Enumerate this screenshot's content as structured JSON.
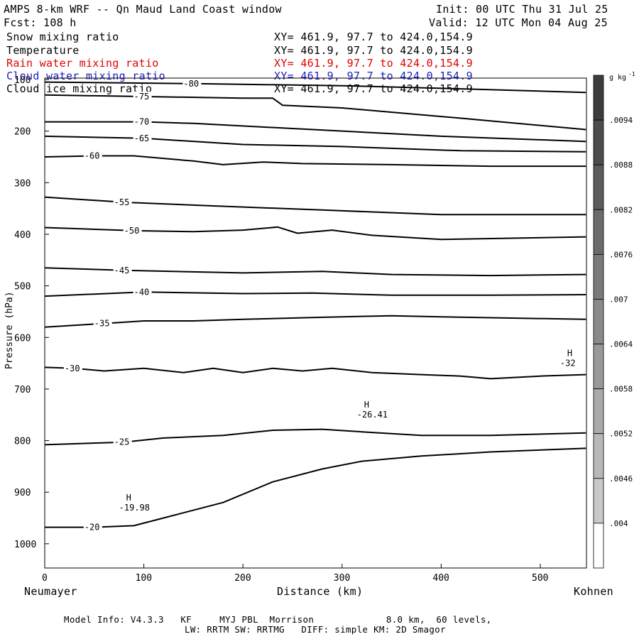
{
  "header": {
    "title": "AMPS 8-km WRF -- Qn Maud Land Coast window",
    "fcst": "Fcst: 108 h",
    "init": "Init: 00 UTC Thu 31 Jul 25",
    "valid": "Valid: 12 UTC Mon 04 Aug 25"
  },
  "legend": [
    {
      "name": "Snow mixing ratio",
      "xy": "XY= 461.9, 97.7 to 424.0,154.9",
      "color": "#000000"
    },
    {
      "name": "Temperature",
      "xy": "XY= 461.9, 97.7 to 424.0,154.9",
      "color": "#000000"
    },
    {
      "name": "Rain water mixing ratio",
      "xy": "XY= 461.9, 97.7 to 424.0,154.9",
      "color": "#e00000"
    },
    {
      "name": "Cloud water mixing ratio",
      "xy": "XY= 461.9, 97.7 to 424.0,154.9",
      "color": "#2020c0"
    },
    {
      "name": "Cloud ice mixing ratio",
      "xy": "XY= 461.9, 97.7 to 424.0,154.9",
      "color": "#000000"
    }
  ],
  "footer": {
    "line1": "Model Info: V4.3.3   KF     MYJ PBL  Morrison             8.0 km,  60 levels,",
    "line2": "LW: RRTM SW: RRTMG   DIFF: simple KM: 2D Smagor"
  },
  "chart_data": {
    "type": "line",
    "xlabel": "Distance (km)",
    "ylabel": "Pressure (hPa)",
    "x_left_label": "Neumayer",
    "x_right_label": "Kohnen",
    "xlim": [
      0,
      546
    ],
    "ylim": [
      1050,
      100
    ],
    "xticks": [
      0,
      100,
      200,
      300,
      400,
      500
    ],
    "yticks": [
      100,
      200,
      300,
      400,
      500,
      600,
      700,
      800,
      900,
      1000
    ],
    "colorbar": {
      "unit": "g kg",
      "unit_exp": "-1",
      "labels": [
        ".0094",
        ".0088",
        ".0082",
        ".0076",
        ".007",
        ".0064",
        ".0058",
        ".0052",
        ".0046",
        ".004"
      ]
    },
    "isotherms": [
      {
        "label": "-80",
        "points": [
          [
            0,
            105
          ],
          [
            150,
            108
          ],
          [
            300,
            112
          ],
          [
            420,
            118
          ],
          [
            546,
            125
          ]
        ]
      },
      {
        "label": "-75",
        "points": [
          [
            0,
            130
          ],
          [
            100,
            133
          ],
          [
            200,
            136
          ],
          [
            230,
            136
          ],
          [
            240,
            150
          ],
          [
            300,
            155
          ],
          [
            420,
            175
          ],
          [
            546,
            197
          ]
        ]
      },
      {
        "label": "-70",
        "points": [
          [
            0,
            182
          ],
          [
            100,
            182
          ],
          [
            150,
            185
          ],
          [
            250,
            195
          ],
          [
            400,
            210
          ],
          [
            546,
            220
          ]
        ]
      },
      {
        "label": "-65",
        "points": [
          [
            0,
            210
          ],
          [
            100,
            214
          ],
          [
            200,
            226
          ],
          [
            300,
            230
          ],
          [
            420,
            238
          ],
          [
            546,
            240
          ]
        ]
      },
      {
        "label": "-60",
        "points": [
          [
            0,
            250
          ],
          [
            50,
            248
          ],
          [
            90,
            248
          ],
          [
            150,
            258
          ],
          [
            180,
            265
          ],
          [
            220,
            260
          ],
          [
            260,
            263
          ],
          [
            350,
            265
          ],
          [
            450,
            268
          ],
          [
            546,
            268
          ]
        ]
      },
      {
        "label": "-55",
        "points": [
          [
            0,
            328
          ],
          [
            80,
            338
          ],
          [
            170,
            345
          ],
          [
            280,
            353
          ],
          [
            400,
            362
          ],
          [
            546,
            362
          ]
        ]
      },
      {
        "label": "-50",
        "points": [
          [
            0,
            387
          ],
          [
            90,
            393
          ],
          [
            150,
            395
          ],
          [
            200,
            392
          ],
          [
            235,
            386
          ],
          [
            255,
            398
          ],
          [
            290,
            392
          ],
          [
            330,
            402
          ],
          [
            400,
            410
          ],
          [
            546,
            405
          ]
        ]
      },
      {
        "label": "-45",
        "points": [
          [
            0,
            465
          ],
          [
            80,
            470
          ],
          [
            200,
            475
          ],
          [
            280,
            472
          ],
          [
            350,
            478
          ],
          [
            450,
            480
          ],
          [
            546,
            478
          ]
        ]
      },
      {
        "label": "-40",
        "points": [
          [
            0,
            520
          ],
          [
            100,
            512
          ],
          [
            200,
            515
          ],
          [
            270,
            514
          ],
          [
            350,
            518
          ],
          [
            450,
            518
          ],
          [
            546,
            517
          ]
        ]
      },
      {
        "label": "-35",
        "points": [
          [
            0,
            580
          ],
          [
            60,
            573
          ],
          [
            100,
            568
          ],
          [
            150,
            568
          ],
          [
            200,
            565
          ],
          [
            280,
            561
          ],
          [
            350,
            558
          ],
          [
            400,
            560
          ],
          [
            546,
            565
          ]
        ]
      },
      {
        "label": "-30",
        "points": [
          [
            0,
            658
          ],
          [
            30,
            660
          ],
          [
            60,
            665
          ],
          [
            100,
            660
          ],
          [
            140,
            668
          ],
          [
            170,
            660
          ],
          [
            200,
            668
          ],
          [
            230,
            660
          ],
          [
            260,
            665
          ],
          [
            290,
            660
          ],
          [
            330,
            668
          ],
          [
            380,
            672
          ],
          [
            420,
            675
          ],
          [
            450,
            680
          ],
          [
            500,
            675
          ],
          [
            546,
            672
          ]
        ]
      },
      {
        "label": "-25",
        "points": [
          [
            0,
            808
          ],
          [
            80,
            803
          ],
          [
            120,
            795
          ],
          [
            180,
            790
          ],
          [
            230,
            780
          ],
          [
            280,
            778
          ],
          [
            320,
            783
          ],
          [
            380,
            790
          ],
          [
            450,
            790
          ],
          [
            546,
            785
          ]
        ]
      },
      {
        "label": "-20",
        "points": [
          [
            0,
            968
          ],
          [
            50,
            968
          ],
          [
            90,
            965
          ],
          [
            120,
            950
          ],
          [
            180,
            920
          ],
          [
            230,
            880
          ],
          [
            280,
            855
          ],
          [
            320,
            840
          ],
          [
            380,
            830
          ],
          [
            450,
            822
          ],
          [
            546,
            815
          ]
        ]
      }
    ],
    "annotations": [
      {
        "text": "H",
        "value": "-19.98",
        "x": 85,
        "p": 930
      },
      {
        "text": "H",
        "value": "-26.41",
        "x": 325,
        "p": 750
      },
      {
        "text": "H",
        "value": "-32",
        "x": 530,
        "p": 650
      }
    ]
  }
}
